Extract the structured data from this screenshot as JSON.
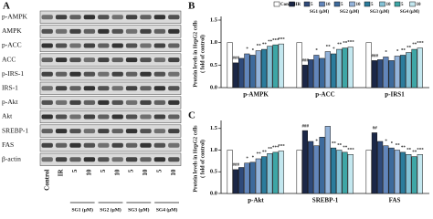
{
  "panel_a": {
    "letter": "A",
    "rows": [
      "p-AMPK",
      "AMPK",
      "p-ACC",
      "ACC",
      "p-IRS-1",
      "IRS-1",
      "p-Akt",
      "Akt",
      "SREBP-1",
      "FAS",
      "β-actin"
    ],
    "lanes": [
      "Control",
      "IR",
      "5",
      "10",
      "5",
      "10",
      "5",
      "10",
      "5",
      "10"
    ],
    "groups": [
      "SG1 (μM)",
      "SG2 (μM)",
      "SG3 (μM)",
      "SG4 (μM)"
    ]
  },
  "chart_data": [
    {
      "type": "bar",
      "letter": "B",
      "ylabel": [
        "Protein levels in HepG2 cells",
        "( fold of control)"
      ],
      "categories": [
        "p-AMPK",
        "p-ACC",
        "p-IRS1"
      ],
      "legend_groups": [
        "SG1 (μM)",
        "SG2 (μM)",
        "SG3 (μM)",
        "SG4 (μM)"
      ],
      "ylim": [
        0,
        1.5
      ],
      "yticks": [
        {
          "value": 0,
          "label": "0.0"
        },
        {
          "value": 0.5,
          "label": "0.5"
        },
        {
          "value": 1,
          "label": "1.0"
        },
        {
          "value": 1.5,
          "label": "1.5"
        }
      ],
      "series": [
        {
          "name": "Control",
          "color": "#ffffff",
          "values": [
            1.0,
            1.0,
            1.0
          ],
          "significance": [
            null,
            null,
            null
          ]
        },
        {
          "name": "IR",
          "color": "#1b2747",
          "values": [
            0.55,
            0.5,
            0.6
          ],
          "significance": [
            "###",
            "###",
            "###"
          ]
        },
        {
          "name": "5",
          "color": "#2f4a7a",
          "values": [
            0.65,
            0.62,
            0.62
          ],
          "significance": [
            null,
            null,
            null
          ]
        },
        {
          "name": "10",
          "color": "#6286bb",
          "values": [
            0.75,
            0.72,
            0.68
          ],
          "significance": [
            "*",
            "*",
            "*"
          ]
        },
        {
          "name": "5",
          "color": "#3d6a9c",
          "values": [
            0.72,
            0.65,
            0.6
          ],
          "significance": [
            "*",
            null,
            null
          ]
        },
        {
          "name": "10",
          "color": "#93b3da",
          "values": [
            0.82,
            0.8,
            0.7
          ],
          "significance": [
            "**",
            "**",
            "*"
          ]
        },
        {
          "name": "5",
          "color": "#2b7c9c",
          "values": [
            0.85,
            0.75,
            0.72
          ],
          "significance": [
            "**",
            "*",
            "**"
          ]
        },
        {
          "name": "10",
          "color": "#84c2d6",
          "values": [
            0.92,
            0.85,
            0.78
          ],
          "significance": [
            "**",
            "**",
            "**"
          ]
        },
        {
          "name": "5",
          "color": "#3ea6a6",
          "values": [
            0.95,
            0.88,
            0.85
          ],
          "significance": [
            "***",
            "**",
            "**"
          ]
        },
        {
          "name": "10",
          "color": "#c3e7ef",
          "values": [
            0.97,
            0.9,
            0.88
          ],
          "significance": [
            "***",
            "***",
            "***"
          ]
        }
      ]
    },
    {
      "type": "bar",
      "letter": "C",
      "ylabel": [
        "Protein levels in HepG2 cells",
        "( fold of control)"
      ],
      "categories": [
        "p-Akt",
        "SREBP-1",
        "FAS"
      ],
      "ylim": [
        0,
        1.6
      ],
      "yticks": [
        {
          "value": 0,
          "label": "0.0"
        },
        {
          "value": 0.5,
          "label": "0.5"
        },
        {
          "value": 1,
          "label": "1.0"
        },
        {
          "value": 1.5,
          "label": "1.5"
        }
      ],
      "series": [
        {
          "name": "Control",
          "color": "#ffffff",
          "values": [
            1.0,
            1.0,
            1.0
          ],
          "significance": [
            null,
            null,
            null
          ]
        },
        {
          "name": "IR",
          "color": "#1b2747",
          "values": [
            0.55,
            1.45,
            1.4
          ],
          "significance": [
            "###",
            "###",
            "##"
          ]
        },
        {
          "name": "5",
          "color": "#2f4a7a",
          "values": [
            0.6,
            1.2,
            1.2
          ],
          "significance": [
            null,
            null,
            null
          ]
        },
        {
          "name": "10",
          "color": "#6286bb",
          "values": [
            0.7,
            1.1,
            1.1
          ],
          "significance": [
            "*",
            "*",
            "*"
          ]
        },
        {
          "name": "5",
          "color": "#3d6a9c",
          "values": [
            0.72,
            1.3,
            1.05
          ],
          "significance": [
            "*",
            null,
            "*"
          ]
        },
        {
          "name": "10",
          "color": "#93b3da",
          "values": [
            0.8,
            1.55,
            1.0
          ],
          "significance": [
            "**",
            null,
            "**"
          ]
        },
        {
          "name": "5",
          "color": "#2b7c9c",
          "values": [
            0.85,
            1.05,
            0.95
          ],
          "significance": [
            "**",
            "**",
            "**"
          ]
        },
        {
          "name": "10",
          "color": "#84c2d6",
          "values": [
            0.92,
            1.0,
            0.9
          ],
          "significance": [
            "**",
            "**",
            "**"
          ]
        },
        {
          "name": "5",
          "color": "#3ea6a6",
          "values": [
            0.95,
            0.95,
            0.85
          ],
          "significance": [
            "***",
            "**",
            "**"
          ]
        },
        {
          "name": "10",
          "color": "#c3e7ef",
          "values": [
            0.98,
            0.9,
            0.9
          ],
          "significance": [
            "***",
            "***",
            "***"
          ]
        }
      ]
    }
  ]
}
